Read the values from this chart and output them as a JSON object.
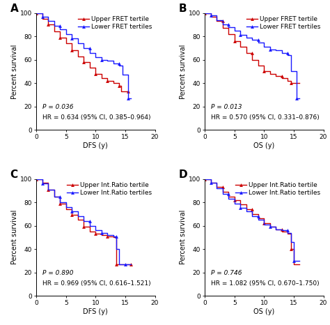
{
  "panels": [
    {
      "label": "A",
      "xlabel": "DFS (y)",
      "ylabel": "Percent survival",
      "legend_upper": "Upper FRET tertile",
      "legend_lower": "Lower FRET tertiles",
      "pval": "P = 0.036",
      "hr": "HR = 0.634 (95% CI, 0.385–0.964)",
      "upper_x": [
        0,
        1,
        2,
        3,
        4,
        5,
        6,
        7,
        8,
        9,
        10,
        11,
        12,
        13,
        14,
        14.3,
        15.5
      ],
      "upper_y": [
        100,
        95,
        90,
        84,
        79,
        74,
        68,
        63,
        58,
        53,
        48,
        44,
        42,
        40,
        38,
        33,
        33
      ],
      "lower_x": [
        0,
        1,
        2,
        3,
        4,
        5,
        6,
        7,
        8,
        9,
        10,
        11,
        12,
        13,
        14,
        14.5,
        15.5,
        16
      ],
      "lower_y": [
        100,
        97,
        93,
        89,
        86,
        82,
        78,
        74,
        70,
        66,
        62,
        60,
        59,
        57,
        55,
        47,
        27,
        27
      ]
    },
    {
      "label": "B",
      "xlabel": "OS (y)",
      "ylabel": "Percent survival",
      "legend_upper": "Upper FRET tertile",
      "legend_lower": "Lower FRET tertiles",
      "pval": "P = 0.013",
      "hr": "HR = 0.570 (95% CI, 0.331–0.876)",
      "upper_x": [
        0,
        1,
        2,
        3,
        4,
        5,
        6,
        7,
        8,
        9,
        10,
        11,
        12,
        13,
        14,
        14.5,
        15,
        16
      ],
      "upper_y": [
        100,
        97,
        93,
        87,
        82,
        76,
        71,
        66,
        60,
        55,
        50,
        48,
        46,
        44,
        42,
        40,
        40,
        40
      ],
      "lower_x": [
        0,
        1,
        2,
        3,
        4,
        5,
        6,
        7,
        8,
        9,
        10,
        11,
        12,
        13,
        14,
        14.5,
        15.5,
        16
      ],
      "lower_y": [
        100,
        98,
        94,
        90,
        88,
        85,
        81,
        79,
        77,
        75,
        71,
        69,
        68,
        66,
        64,
        50,
        27,
        27
      ]
    },
    {
      "label": "C",
      "xlabel": "DFS (y)",
      "ylabel": "Percent survival",
      "legend_upper": "Upper Int.Ratio tertile",
      "legend_lower": "Lower Int.Ratio tertiles",
      "pval": "P = 0.890",
      "hr": "HR = 0.969 (95% CI, 0.616–1.521)",
      "upper_x": [
        0,
        1,
        2,
        3,
        4,
        5,
        6,
        7,
        8,
        9,
        10,
        11,
        12,
        13,
        13.5,
        15,
        16
      ],
      "upper_y": [
        100,
        97,
        91,
        85,
        79,
        74,
        69,
        65,
        59,
        55,
        53,
        52,
        51,
        50,
        27,
        27,
        27
      ],
      "lower_x": [
        0,
        1,
        2,
        3,
        4,
        5,
        6,
        7,
        8,
        9,
        10,
        11,
        12,
        13,
        13.5,
        14,
        15,
        16
      ],
      "lower_y": [
        100,
        96,
        91,
        85,
        80,
        76,
        72,
        68,
        64,
        60,
        56,
        54,
        52,
        51,
        40,
        27,
        27,
        27
      ]
    },
    {
      "label": "D",
      "xlabel": "OS (y)",
      "ylabel": "Percent survival",
      "legend_upper": "Upper Int.Ratio tertile",
      "legend_lower": "Lower Int.Ratio tertiles",
      "pval": "P = 0.746",
      "hr": "HR = 1.082 (95% CI, 0.670–1.750)",
      "upper_x": [
        0,
        1,
        2,
        3,
        4,
        5,
        6,
        7,
        8,
        9,
        10,
        11,
        12,
        13,
        14,
        14.5,
        15,
        16
      ],
      "upper_y": [
        100,
        97,
        93,
        89,
        85,
        82,
        78,
        74,
        70,
        66,
        62,
        59,
        57,
        55,
        53,
        40,
        27,
        27
      ],
      "lower_x": [
        0,
        1,
        2,
        3,
        4,
        5,
        6,
        7,
        8,
        9,
        10,
        11,
        12,
        13,
        14,
        14.5,
        15,
        16
      ],
      "lower_y": [
        100,
        97,
        92,
        87,
        83,
        79,
        75,
        72,
        68,
        65,
        61,
        59,
        57,
        56,
        54,
        46,
        30,
        30
      ]
    }
  ],
  "upper_color": "#cc0000",
  "lower_color": "#1a1aff",
  "xlim": [
    0,
    20
  ],
  "ylim": [
    0,
    100
  ],
  "xticks": [
    0,
    5,
    10,
    15,
    20
  ],
  "yticks": [
    0,
    20,
    40,
    60,
    80,
    100
  ],
  "marker": "^",
  "markersize": 3.5,
  "linewidth": 1.0,
  "fontsize_label": 7,
  "fontsize_tick": 6.5,
  "fontsize_legend": 6.5,
  "fontsize_panel": 11,
  "fontsize_stat": 6.5,
  "background_color": "#ffffff"
}
